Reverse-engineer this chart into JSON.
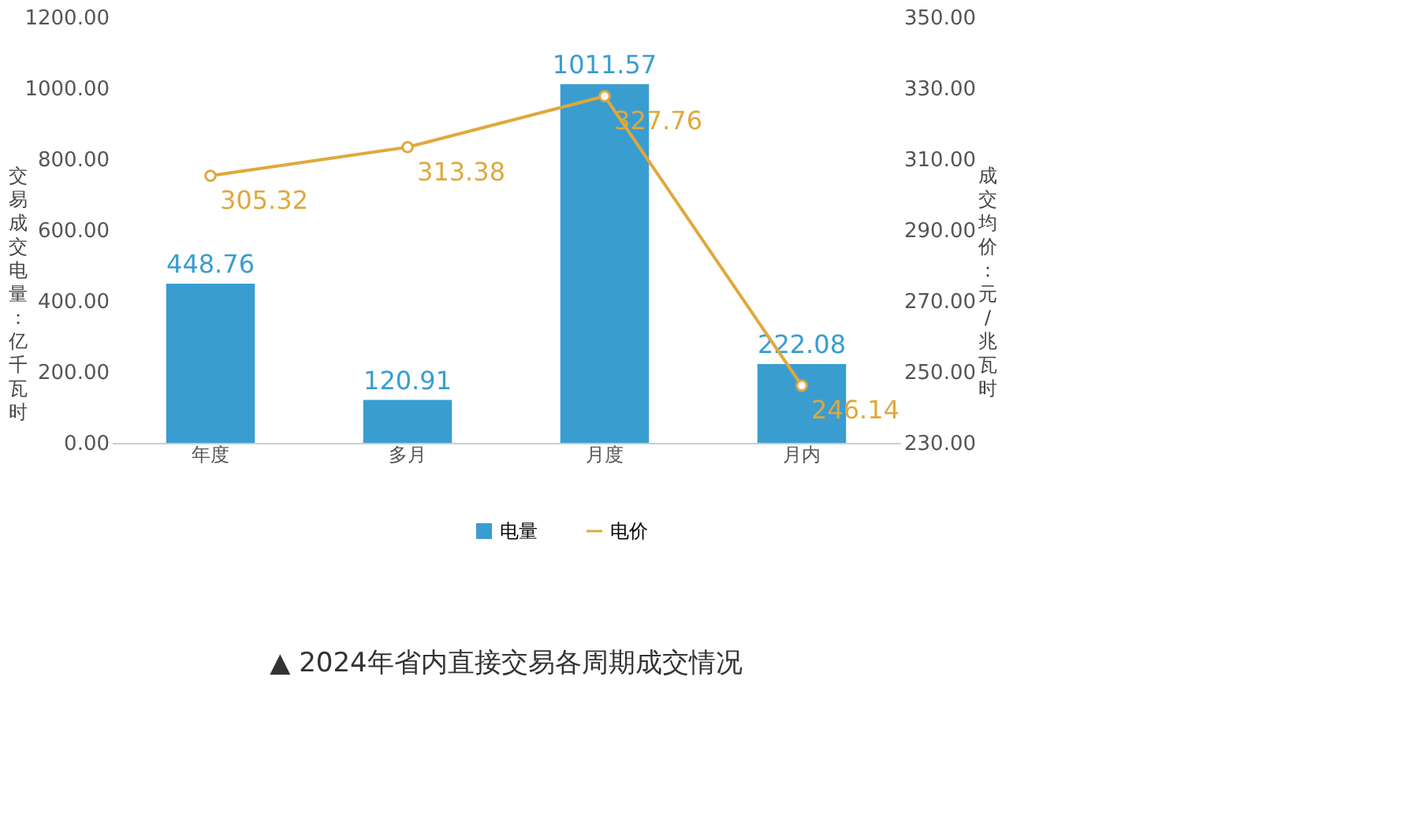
{
  "chart_data": {
    "type": "bar",
    "title": "▲ 2024年省内直接交易各周期成交情况",
    "ylabel": "交易成交电量：亿千瓦时",
    "y2label": "成交均价：元/兆瓦时",
    "categories": [
      "年度",
      "多月",
      "月度",
      "月内"
    ],
    "series": [
      {
        "name": "电量",
        "color": "#3a9dd0",
        "values": [
          448.76,
          120.91,
          1011.57,
          222.08
        ]
      },
      {
        "name": "电价",
        "type": "line",
        "axis": "y2",
        "color": "#e0a83c",
        "values": [
          305.32,
          313.38,
          327.76,
          246.14
        ]
      }
    ],
    "ylim": [
      0,
      1200
    ],
    "yticks": [
      {
        "value": 0,
        "label": "0.00"
      },
      {
        "value": 200,
        "label": "200.00"
      },
      {
        "value": 400,
        "label": "400.00"
      },
      {
        "value": 600,
        "label": "600.00"
      },
      {
        "value": 800,
        "label": "800.00"
      },
      {
        "value": 1000,
        "label": "1000.00"
      },
      {
        "value": 1200,
        "label": "1200.00"
      }
    ],
    "y2lim": [
      230,
      350
    ],
    "y2ticks": [
      {
        "value": 230,
        "label": "230.00"
      },
      {
        "value": 250,
        "label": "250.00"
      },
      {
        "value": 270,
        "label": "270.00"
      },
      {
        "value": 290,
        "label": "290.00"
      },
      {
        "value": 310,
        "label": "310.00"
      },
      {
        "value": 330,
        "label": "330.00"
      },
      {
        "value": 350,
        "label": "350.00"
      }
    ],
    "data_labels": true,
    "legend": "bottom",
    "grid": false,
    "marker": "circle",
    "line_style": "solid"
  }
}
